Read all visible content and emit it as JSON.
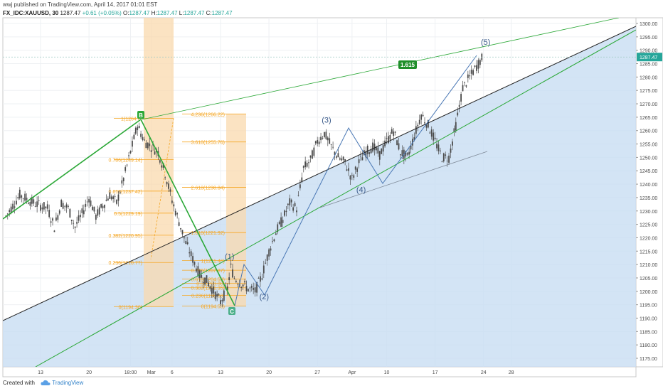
{
  "header": {
    "publisher": "wwj published on TradingView.com, April 14, 2017 01:01 EST",
    "symbol": "FX_IDC:XAUUSD, 30",
    "last": "1287.47",
    "change": "+0.61 (+0.05%)",
    "o_label": "O:",
    "o_value": "1287.47",
    "h_label": "H:",
    "h_value": "1287.47",
    "l_label": "L:",
    "l_value": "1287.47",
    "c_label": "C:",
    "c_value": "1287.47"
  },
  "footer": {
    "created_with": "Created with",
    "brand": "TradingView"
  },
  "colors": {
    "up": "#26a69a",
    "candle": "#4a4a4a",
    "fib": "#f5a623",
    "fib_box": "#f9d9ad",
    "channel_fill": "#c8ddf3",
    "green_line": "#2ba837",
    "blue_line": "#4a78b5"
  },
  "chart_data": {
    "type": "candlestick",
    "ylim": [
      1170,
      1305
    ],
    "price_ticks": [
      "1300.00",
      "1295.00",
      "1290.00",
      "1285.00",
      "1280.00",
      "1275.00",
      "1270.00",
      "1265.00",
      "1260.00",
      "1255.00",
      "1250.00",
      "1245.00",
      "1240.00",
      "1235.00",
      "1230.00",
      "1225.00",
      "1220.00",
      "1215.00",
      "1210.00",
      "1205.00",
      "1200.00",
      "1195.00",
      "1190.00",
      "1185.00",
      "1180.00",
      "1175.00"
    ],
    "last_price_label": "1287.47",
    "time_ticks": [
      {
        "label": "13",
        "day": 0
      },
      {
        "label": "20",
        "day": 7
      },
      {
        "label": "18:00",
        "day": 13
      },
      {
        "label": "Mar",
        "day": 16
      },
      {
        "label": "6",
        "day": 19
      },
      {
        "label": "13",
        "day": 26
      },
      {
        "label": "20",
        "day": 33
      },
      {
        "label": "27",
        "day": 40
      },
      {
        "label": "Apr",
        "day": 45
      },
      {
        "label": "10",
        "day": 50
      },
      {
        "label": "17",
        "day": 57
      },
      {
        "label": "24",
        "day": 64
      },
      {
        "label": "28",
        "day": 68
      }
    ],
    "path_points": [
      [
        -5,
        1228
      ],
      [
        -3,
        1236
      ],
      [
        -1,
        1233
      ],
      [
        1,
        1231
      ],
      [
        2,
        1224
      ],
      [
        3,
        1233
      ],
      [
        4,
        1231
      ],
      [
        5,
        1224
      ],
      [
        6,
        1229
      ],
      [
        7,
        1235
      ],
      [
        8,
        1228
      ],
      [
        9,
        1232
      ],
      [
        10,
        1236
      ],
      [
        11,
        1233
      ],
      [
        12,
        1242
      ],
      [
        13,
        1252
      ],
      [
        14,
        1262
      ],
      [
        15,
        1256
      ],
      [
        16,
        1254
      ],
      [
        17,
        1252
      ],
      [
        18,
        1244
      ],
      [
        19,
        1234
      ],
      [
        20,
        1226
      ],
      [
        21,
        1218
      ],
      [
        22,
        1212
      ],
      [
        23,
        1206
      ],
      [
        24,
        1204
      ],
      [
        25,
        1200
      ],
      [
        26,
        1196
      ],
      [
        27,
        1201
      ],
      [
        27.5,
        1209
      ],
      [
        28,
        1205
      ],
      [
        29,
        1203
      ],
      [
        30,
        1201
      ],
      [
        31,
        1200
      ],
      [
        32,
        1206
      ],
      [
        33,
        1215
      ],
      [
        34,
        1222
      ],
      [
        35,
        1227
      ],
      [
        36,
        1233
      ],
      [
        37,
        1231
      ],
      [
        38,
        1246
      ],
      [
        39,
        1249
      ],
      [
        40,
        1256
      ],
      [
        41,
        1259
      ],
      [
        42,
        1254
      ],
      [
        43,
        1250
      ],
      [
        44,
        1248
      ],
      [
        45,
        1242
      ],
      [
        46,
        1248
      ],
      [
        47,
        1252
      ],
      [
        48,
        1254
      ],
      [
        49,
        1251
      ],
      [
        50,
        1256
      ],
      [
        51,
        1260
      ],
      [
        52,
        1252
      ],
      [
        53,
        1250
      ],
      [
        54,
        1258
      ],
      [
        55,
        1266
      ],
      [
        56,
        1262
      ],
      [
        57,
        1256
      ],
      [
        58,
        1250
      ],
      [
        59,
        1250
      ],
      [
        60,
        1262
      ],
      [
        61,
        1276
      ],
      [
        62,
        1280
      ],
      [
        63,
        1284
      ],
      [
        64,
        1288
      ]
    ],
    "fib_left": {
      "levels": [
        {
          "label": "1(1264.6)",
          "price": 1264.6
        },
        {
          "label": "0.786(1249.14)",
          "price": 1249.14
        },
        {
          "label": "0.618(1237.42)",
          "price": 1237.42
        },
        {
          "label": "0.5(1229.19)",
          "price": 1229.19
        },
        {
          "label": "0.382(1220.95)",
          "price": 1220.95
        },
        {
          "label": "0.236(1210.77)",
          "price": 1210.77
        },
        {
          "label": "0(1194.30)",
          "price": 1194.3
        }
      ]
    },
    "fib_ext": {
      "levels": [
        {
          "label": "4.236(1266.22)",
          "price": 1266.22
        },
        {
          "label": "3.618(1255.76)",
          "price": 1255.76
        },
        {
          "label": "2.618(1238.84)",
          "price": 1238.84
        },
        {
          "label": "1.618(1221.92)",
          "price": 1221.92
        },
        {
          "label": "1(1211.46)",
          "price": 1211.46
        }
      ]
    },
    "fib_right": {
      "levels": [
        {
          "label": "0.786(1207.87)",
          "price": 1207.87
        },
        {
          "label": "0.618(1204.59)",
          "price": 1204.59
        },
        {
          "label": "0.5(1203.00)",
          "price": 1203.0
        },
        {
          "label": "0.382(1201.35)",
          "price": 1201.35
        },
        {
          "label": "0.236(1198.53)",
          "price": 1198.53
        },
        {
          "label": "0(1194.53)",
          "price": 1194.53
        }
      ]
    },
    "wave_labels": [
      {
        "text": "(1)",
        "day": 27,
        "price": 1212
      },
      {
        "text": "(2)",
        "day": 32,
        "price": 1197
      },
      {
        "text": "(3)",
        "day": 41,
        "price": 1263
      },
      {
        "text": "(4)",
        "day": 46,
        "price": 1237
      },
      {
        "text": "(5)",
        "day": 64,
        "price": 1292
      }
    ],
    "point_labels": [
      {
        "text": "B",
        "day": 14,
        "price": 1266
      },
      {
        "text": "C",
        "day": 26,
        "price": 1193
      }
    ],
    "ratio_label": {
      "text": "1.615",
      "day": 45,
      "price": 1285
    }
  }
}
